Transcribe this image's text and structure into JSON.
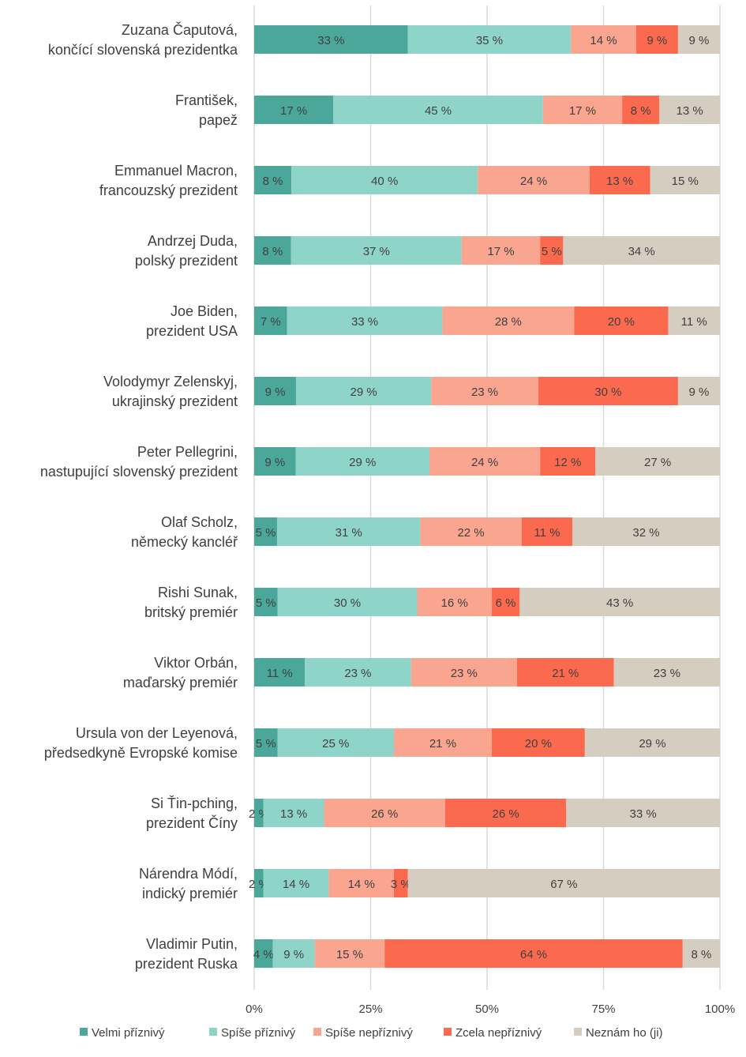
{
  "chart_data": {
    "type": "bar",
    "orientation": "horizontal",
    "stacked": "100%",
    "categories": [
      [
        "Zuzana Čaputová,",
        "končící slovenská prezidentka"
      ],
      [
        "František,",
        "papež"
      ],
      [
        "Emmanuel Macron,",
        "francouzský prezident"
      ],
      [
        "Andrzej Duda,",
        "polský prezident"
      ],
      [
        "Joe Biden,",
        "prezident USA"
      ],
      [
        "Volodymyr Zelenskyj,",
        "ukrajinský prezident"
      ],
      [
        "Peter Pellegrini,",
        "nastupující slovenský prezident"
      ],
      [
        "Olaf Scholz,",
        "německý kancléř"
      ],
      [
        "Rishi Sunak,",
        "britský premiér"
      ],
      [
        "Viktor Orbán,",
        "maďarský premiér"
      ],
      [
        "Ursula von der Leyenová,",
        "předsedkyně Evropské komise"
      ],
      [
        "Si Ťin-pching,",
        "prezident Číny"
      ],
      [
        "Nárendra Módí,",
        "indický premiér"
      ],
      [
        "Vladimir Putin,",
        "prezident Ruska"
      ]
    ],
    "series": [
      {
        "name": "Velmi příznivý",
        "color": "#4aa79a",
        "values": [
          33,
          17,
          8,
          8,
          7,
          9,
          9,
          5,
          5,
          11,
          5,
          2,
          2,
          4
        ],
        "labels": [
          "33 %",
          "17 %",
          "8 %",
          "8 %",
          "7 %",
          "9 %",
          "9 %",
          "5 %",
          "5 %",
          "11 %",
          "5 %",
          "2 %",
          "2 %",
          "4 %"
        ]
      },
      {
        "name": "Spíše příznivý",
        "color": "#8fd4c9",
        "values": [
          35,
          45,
          40,
          37,
          33,
          29,
          29,
          31,
          30,
          23,
          25,
          13,
          14,
          9
        ],
        "labels": [
          "35 %",
          "45 %",
          "40 %",
          "37 %",
          "33 %",
          "29 %",
          "29 %",
          "31 %",
          "30 %",
          "23 %",
          "25 %",
          "13 %",
          "14 %",
          "9 %"
        ]
      },
      {
        "name": "Spíše nepříznivý",
        "color": "#f9a58f",
        "values": [
          14,
          17,
          24,
          17,
          28,
          23,
          24,
          22,
          16,
          23,
          21,
          26,
          14,
          15
        ],
        "labels": [
          "14 %",
          "17 %",
          "24 %",
          "17 %",
          "28 %",
          "23 %",
          "24 %",
          "22 %",
          "16 %",
          "23 %",
          "21 %",
          "26 %",
          "14 %",
          "15 %"
        ]
      },
      {
        "name": "Zcela nepříznivý",
        "color": "#fb6a4e",
        "values": [
          9,
          8,
          13,
          5,
          20,
          30,
          12,
          11,
          6,
          21,
          20,
          26,
          3,
          64
        ],
        "labels": [
          "9 %",
          "8 %",
          "13 %",
          "5 %",
          "20 %",
          "30 %",
          "12 %",
          "11 %",
          "6 %",
          "21 %",
          "20 %",
          "26 %",
          "3 %",
          "64 %"
        ]
      },
      {
        "name": "Neznám ho (ji)",
        "color": "#d5cdc0",
        "values": [
          9,
          13,
          15,
          34,
          11,
          9,
          27,
          32,
          43,
          23,
          29,
          33,
          67,
          8
        ],
        "labels": [
          "9 %",
          "13 %",
          "15 %",
          "34 %",
          "11 %",
          "9 %",
          "27 %",
          "32 %",
          "43 %",
          "23 %",
          "29 %",
          "33 %",
          "67 %",
          "8 %"
        ]
      }
    ],
    "xlim": [
      0,
      100
    ],
    "xticks": [
      "0%",
      "25%",
      "50%",
      "75%",
      "100%"
    ],
    "grid": true,
    "legend_position": "bottom",
    "title": "",
    "xlabel": "",
    "ylabel": ""
  }
}
